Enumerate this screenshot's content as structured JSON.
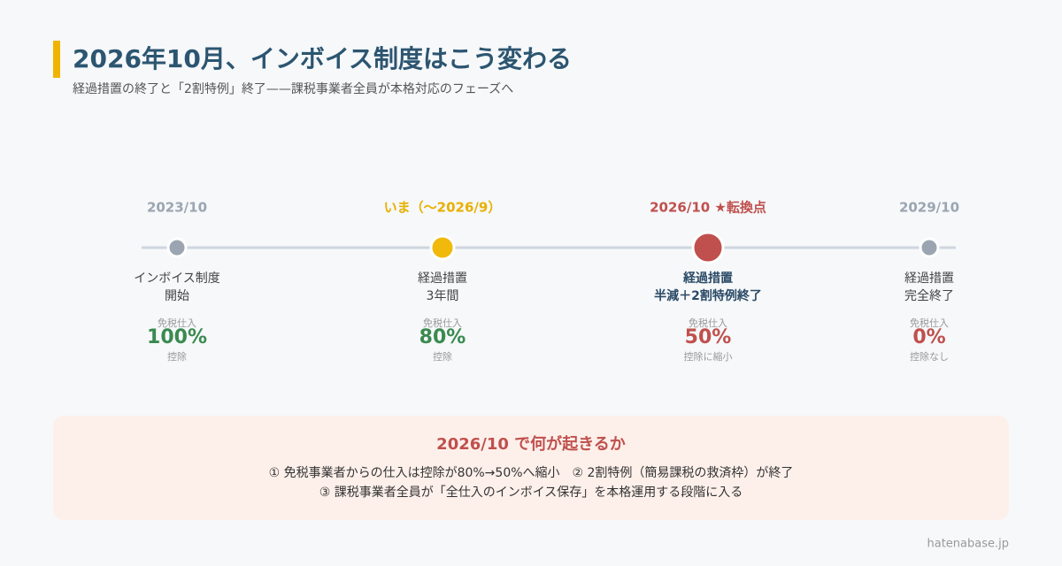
{
  "header": {
    "title": "2026年10月、インボイス制度はこう変わる",
    "subtitle": "経過措置の終了と「2割特例」終了——課税事業者全員が本格対応のフェーズへ"
  },
  "timeline": [
    {
      "date": "2023/10",
      "label": [
        "インボイス制度",
        "開始"
      ],
      "caption": "免税仕入",
      "rate": "100%",
      "note": "控除"
    },
    {
      "date": "いま（〜2026/9）",
      "label": [
        "経過措置",
        "3年間"
      ],
      "caption": "免税仕入",
      "rate": "80%",
      "note": "控除"
    },
    {
      "date": "2026/10 ★転換点",
      "label": [
        "経過措置",
        "半減＋2割特例終了"
      ],
      "caption": "免税仕入",
      "rate": "50%",
      "note": "控除に縮小"
    },
    {
      "date": "2029/10",
      "label": [
        "経過措置",
        "完全終了"
      ],
      "caption": "免税仕入",
      "rate": "0%",
      "note": "控除なし"
    }
  ],
  "summary": {
    "title": "2026/10 で何が起きるか",
    "lines": [
      "① 免税事業者からの仕入は控除が80%→50%へ縮小　② 2割特例（簡易課税の救済枠）が終了",
      "③ 課税事業者全員が「全仕入のインボイス保存」を本格運用する段階に入る"
    ]
  },
  "footer": "hatenabase.jp"
}
